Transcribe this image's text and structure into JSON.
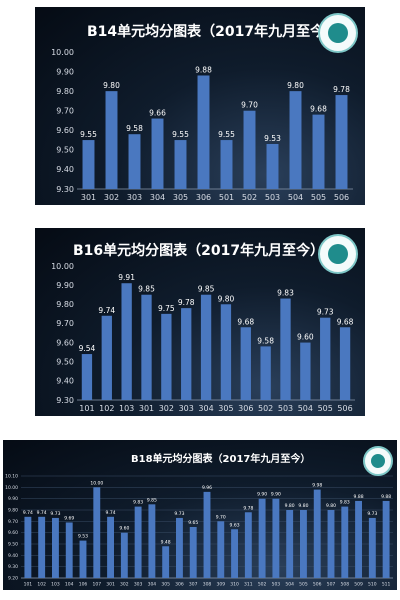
{
  "chart_data": [
    {
      "type": "bar",
      "title": "B14单元均分图表（2017年九月至今）",
      "categories": [
        "301",
        "302",
        "303",
        "304",
        "305",
        "306",
        "501",
        "502",
        "503",
        "504",
        "505",
        "506"
      ],
      "values": [
        9.55,
        9.8,
        9.58,
        9.66,
        9.55,
        9.88,
        9.55,
        9.7,
        9.53,
        9.8,
        9.68,
        9.78
      ],
      "value_labels": [
        "9.55",
        "9.80",
        "9.58",
        "9.66",
        "9.55",
        "9.88",
        "9.55",
        "9.70",
        "9.53",
        "9.80",
        "9.68",
        "9.78"
      ],
      "yticks": [
        "10.00",
        "9.90",
        "9.80",
        "9.70",
        "9.60",
        "9.50",
        "9.40",
        "9.30"
      ],
      "ylim": [
        9.3,
        10.0
      ],
      "bar_color": "#4a78c0",
      "grid": false
    },
    {
      "type": "bar",
      "title": "B16单元均分图表（2017年九月至今）",
      "categories": [
        "101",
        "102",
        "103",
        "301",
        "302",
        "303",
        "304",
        "305",
        "306",
        "502",
        "503",
        "504",
        "505",
        "506"
      ],
      "values": [
        9.54,
        9.74,
        9.91,
        9.85,
        9.75,
        9.78,
        9.85,
        9.8,
        9.68,
        9.58,
        9.83,
        9.6,
        9.73,
        9.68
      ],
      "value_labels": [
        "9.54",
        "9.74",
        "9.91",
        "9.85",
        "9.75",
        "9.78",
        "9.85",
        "9.80",
        "9.68",
        "9.58",
        "9.83",
        "9.60",
        "9.73",
        "9.68"
      ],
      "yticks": [
        "10.00",
        "9.90",
        "9.80",
        "9.70",
        "9.60",
        "9.50",
        "9.40",
        "9.30"
      ],
      "ylim": [
        9.3,
        10.0
      ],
      "bar_color": "#4a78c0",
      "grid": false
    },
    {
      "type": "bar",
      "title": "B18单元均分图表（2017年九月至今）",
      "categories": [
        "101",
        "102",
        "103",
        "104",
        "106",
        "107",
        "301",
        "302",
        "303",
        "304",
        "305",
        "306",
        "307",
        "308",
        "309",
        "310",
        "311",
        "502",
        "503",
        "504",
        "505",
        "506",
        "507",
        "508",
        "509",
        "510",
        "511"
      ],
      "values": [
        9.74,
        9.74,
        9.73,
        9.69,
        9.53,
        10.0,
        9.74,
        9.6,
        9.83,
        9.85,
        9.48,
        9.73,
        9.65,
        9.96,
        9.7,
        9.63,
        9.78,
        9.9,
        9.9,
        9.8,
        9.8,
        9.98,
        9.8,
        9.83,
        9.88,
        9.73,
        9.88
      ],
      "value_labels": [
        "9.74",
        "9.74",
        "9.73",
        "9.69",
        "9.53",
        "10.00",
        "9.74",
        "9.60",
        "9.83",
        "9.85",
        "9.48",
        "9.73",
        "9.65",
        "9.96",
        "9.70",
        "9.63",
        "9.78",
        "9.90",
        "9.90",
        "9.80",
        "9.80",
        "9.98",
        "9.80",
        "9.83",
        "9.88",
        "9.73",
        "9.88"
      ],
      "yticks": [
        "10.10",
        "10.00",
        "9.90",
        "9.80",
        "9.70",
        "9.60",
        "9.50",
        "9.40",
        "9.30",
        "9.20"
      ],
      "ylim": [
        9.2,
        10.1
      ],
      "bar_color": "#4a78c0",
      "grid": true
    }
  ]
}
